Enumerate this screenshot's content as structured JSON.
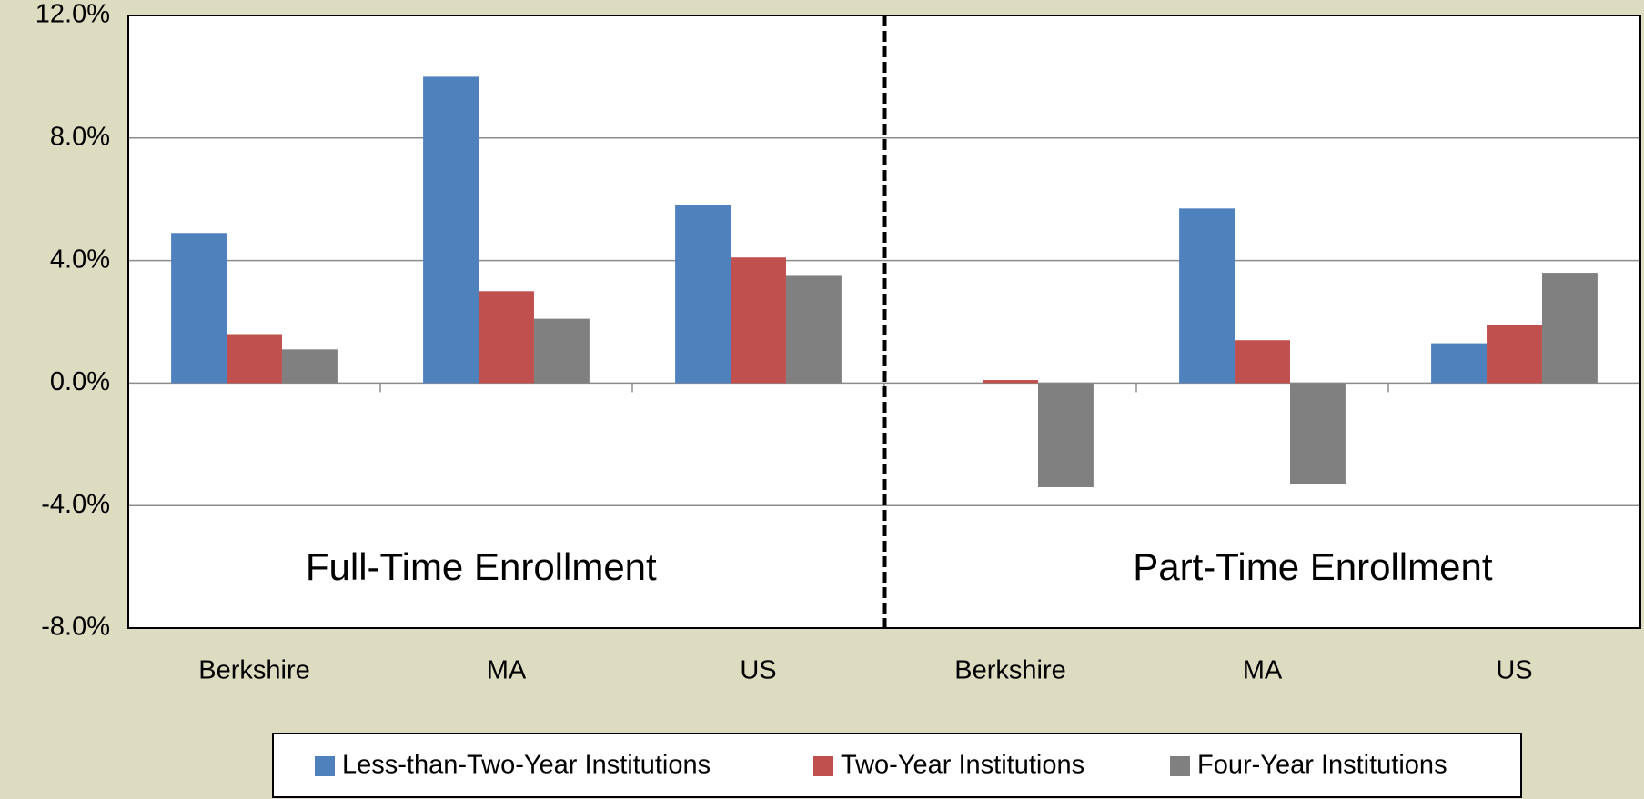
{
  "chart_data": {
    "type": "bar",
    "categories": [
      "Berkshire",
      "MA",
      "US",
      "Berkshire",
      "MA",
      "US"
    ],
    "series": [
      {
        "name": "Less-than-Two-Year Institutions",
        "color": "#4f81bd",
        "values": [
          4.9,
          10.0,
          5.8,
          0,
          5.7,
          1.3
        ]
      },
      {
        "name": "Two-Year Institutions",
        "color": "#c0504d",
        "values": [
          1.6,
          3.0,
          4.1,
          0.1,
          1.4,
          1.9
        ]
      },
      {
        "name": "Four-Year Institutions",
        "color": "#808080",
        "values": [
          1.1,
          2.1,
          3.5,
          -3.4,
          -3.3,
          3.6
        ]
      }
    ],
    "annotations": [
      "Full-Time Enrollment",
      "Part-Time Enrollment"
    ],
    "ylim": [
      -8,
      12
    ],
    "yticks": [
      {
        "value": -8,
        "label": "-8.0%"
      },
      {
        "value": -4,
        "label": "-4.0%"
      },
      {
        "value": 0,
        "label": "0.0%"
      },
      {
        "value": 4,
        "label": "4.0%"
      },
      {
        "value": 8,
        "label": "8.0%"
      },
      {
        "value": 12,
        "label": "12.0%"
      }
    ],
    "grid": true,
    "legend": "bottom"
  }
}
